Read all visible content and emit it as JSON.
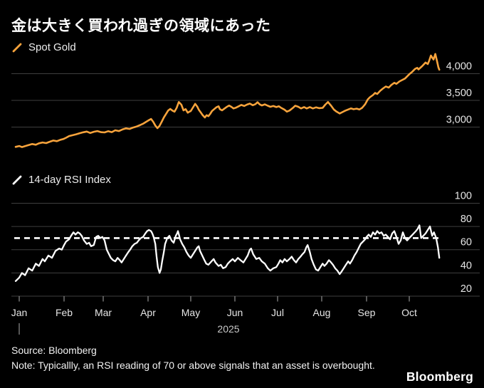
{
  "title": "金は大きく買われ過ぎの領域にあった",
  "colors": {
    "background": "#000000",
    "gold_line": "#F7A33C",
    "rsi_line": "#FFFFFF",
    "grid": "#3E3E3E",
    "axis_text": "#E6E6E6",
    "tick": "#8F8F8F",
    "year_text": "#C9C9C9",
    "title_text": "#FFFFFF",
    "footer_text": "#F2F2F2"
  },
  "x_axis": {
    "months": [
      "Jan",
      "Feb",
      "Mar",
      "Apr",
      "May",
      "Jun",
      "Jul",
      "Aug",
      "Sep",
      "Oct"
    ],
    "year": "2025"
  },
  "footer": {
    "source": "Source: Bloomberg",
    "note": "Note: Typicallly, an RSI reading of 70 or above signals that an asset is overbought.",
    "logo": "Bloomberg"
  },
  "chart_data": [
    {
      "id": "spot-gold",
      "type": "line",
      "title": "Spot Gold",
      "legend_icon": "slash-swatch",
      "series_color": "#F7A33C",
      "x_unit": "months since Jan 2025",
      "y_axis": {
        "side": "right",
        "ticks": [
          4000,
          3500,
          3000
        ],
        "tick_labels": [
          "4,000",
          "3,500",
          "3,000"
        ],
        "approx_range": [
          2550,
          4420
        ]
      },
      "points": [
        [
          -0.08,
          2630
        ],
        [
          0,
          2645
        ],
        [
          0.06,
          2625
        ],
        [
          0.13,
          2642
        ],
        [
          0.21,
          2662
        ],
        [
          0.29,
          2682
        ],
        [
          0.37,
          2670
        ],
        [
          0.44,
          2696
        ],
        [
          0.52,
          2712
        ],
        [
          0.6,
          2700
        ],
        [
          0.68,
          2726
        ],
        [
          0.76,
          2748
        ],
        [
          0.84,
          2736
        ],
        [
          0.92,
          2762
        ],
        [
          0.98,
          2775
        ],
        [
          1.05,
          2800
        ],
        [
          1.13,
          2832
        ],
        [
          1.22,
          2848
        ],
        [
          1.31,
          2866
        ],
        [
          1.4,
          2886
        ],
        [
          1.49,
          2902
        ],
        [
          1.58,
          2916
        ],
        [
          1.67,
          2890
        ],
        [
          1.76,
          2912
        ],
        [
          1.85,
          2926
        ],
        [
          1.95,
          2904
        ],
        [
          2.03,
          2900
        ],
        [
          2.11,
          2922
        ],
        [
          2.19,
          2906
        ],
        [
          2.27,
          2940
        ],
        [
          2.35,
          2926
        ],
        [
          2.43,
          2956
        ],
        [
          2.51,
          2976
        ],
        [
          2.59,
          2966
        ],
        [
          2.67,
          2992
        ],
        [
          2.75,
          3012
        ],
        [
          2.83,
          3040
        ],
        [
          2.9,
          3068
        ],
        [
          2.96,
          3100
        ],
        [
          3.02,
          3130
        ],
        [
          3.07,
          3152
        ],
        [
          3.12,
          3100
        ],
        [
          3.17,
          3030
        ],
        [
          3.22,
          2980
        ],
        [
          3.27,
          3024
        ],
        [
          3.32,
          3100
        ],
        [
          3.37,
          3180
        ],
        [
          3.42,
          3244
        ],
        [
          3.47,
          3310
        ],
        [
          3.52,
          3340
        ],
        [
          3.57,
          3310
        ],
        [
          3.62,
          3288
        ],
        [
          3.67,
          3360
        ],
        [
          3.72,
          3470
        ],
        [
          3.78,
          3420
        ],
        [
          3.83,
          3313
        ],
        [
          3.88,
          3336
        ],
        [
          3.93,
          3270
        ],
        [
          3.97,
          3290
        ],
        [
          4.0,
          3300
        ],
        [
          4.06,
          3380
        ],
        [
          4.1,
          3435
        ],
        [
          4.15,
          3380
        ],
        [
          4.18,
          3327
        ],
        [
          4.23,
          3270
        ],
        [
          4.27,
          3224
        ],
        [
          4.32,
          3180
        ],
        [
          4.36,
          3222
        ],
        [
          4.4,
          3204
        ],
        [
          4.44,
          3247
        ],
        [
          4.48,
          3300
        ],
        [
          4.53,
          3336
        ],
        [
          4.58,
          3371
        ],
        [
          4.63,
          3390
        ],
        [
          4.66,
          3336
        ],
        [
          4.71,
          3313
        ],
        [
          4.76,
          3344
        ],
        [
          4.82,
          3380
        ],
        [
          4.87,
          3402
        ],
        [
          4.92,
          3380
        ],
        [
          4.97,
          3350
        ],
        [
          5.03,
          3365
        ],
        [
          5.08,
          3385
        ],
        [
          5.15,
          3415
        ],
        [
          5.22,
          3395
        ],
        [
          5.28,
          3420
        ],
        [
          5.35,
          3440
        ],
        [
          5.42,
          3410
        ],
        [
          5.48,
          3430
        ],
        [
          5.53,
          3465
        ],
        [
          5.58,
          3425
        ],
        [
          5.63,
          3405
        ],
        [
          5.7,
          3425
        ],
        [
          5.77,
          3400
        ],
        [
          5.83,
          3380
        ],
        [
          5.9,
          3395
        ],
        [
          5.97,
          3375
        ],
        [
          6.03,
          3390
        ],
        [
          6.08,
          3360
        ],
        [
          6.15,
          3330
        ],
        [
          6.21,
          3290
        ],
        [
          6.27,
          3310
        ],
        [
          6.34,
          3355
        ],
        [
          6.4,
          3400
        ],
        [
          6.47,
          3380
        ],
        [
          6.53,
          3350
        ],
        [
          6.6,
          3375
        ],
        [
          6.66,
          3350
        ],
        [
          6.73,
          3375
        ],
        [
          6.8,
          3350
        ],
        [
          6.87,
          3370
        ],
        [
          6.94,
          3355
        ],
        [
          7.02,
          3360
        ],
        [
          7.08,
          3420
        ],
        [
          7.14,
          3470
        ],
        [
          7.21,
          3400
        ],
        [
          7.27,
          3330
        ],
        [
          7.33,
          3290
        ],
        [
          7.4,
          3255
        ],
        [
          7.46,
          3280
        ],
        [
          7.52,
          3305
        ],
        [
          7.59,
          3330
        ],
        [
          7.65,
          3350
        ],
        [
          7.71,
          3335
        ],
        [
          7.78,
          3345
        ],
        [
          7.84,
          3330
        ],
        [
          7.9,
          3360
        ],
        [
          7.97,
          3430
        ],
        [
          8.03,
          3520
        ],
        [
          8.08,
          3560
        ],
        [
          8.15,
          3600
        ],
        [
          8.2,
          3640
        ],
        [
          8.25,
          3620
        ],
        [
          8.32,
          3680
        ],
        [
          8.38,
          3720
        ],
        [
          8.45,
          3760
        ],
        [
          8.52,
          3740
        ],
        [
          8.58,
          3790
        ],
        [
          8.65,
          3830
        ],
        [
          8.7,
          3810
        ],
        [
          8.77,
          3855
        ],
        [
          8.83,
          3880
        ],
        [
          8.9,
          3910
        ],
        [
          8.95,
          3950
        ],
        [
          9.0,
          3990
        ],
        [
          9.06,
          4030
        ],
        [
          9.13,
          4090
        ],
        [
          9.18,
          4110
        ],
        [
          9.21,
          4080
        ],
        [
          9.29,
          4140
        ],
        [
          9.37,
          4210
        ],
        [
          9.42,
          4180
        ],
        [
          9.45,
          4240
        ],
        [
          9.49,
          4340
        ],
        [
          9.55,
          4265
        ],
        [
          9.59,
          4370
        ],
        [
          9.63,
          4230
        ],
        [
          9.66,
          4120
        ],
        [
          9.68,
          4075
        ]
      ]
    },
    {
      "id": "rsi",
      "type": "line",
      "title": "14-day RSI Index",
      "legend_icon": "slash-swatch",
      "series_color": "#FFFFFF",
      "x_unit": "months since Jan 2025",
      "y_axis": {
        "side": "right",
        "ticks": [
          100,
          80,
          60,
          40,
          20
        ],
        "tick_labels": [
          "100",
          "80",
          "60",
          "40",
          "20"
        ],
        "approx_range": [
          20,
          100
        ]
      },
      "reference_line": {
        "value": 70,
        "style": "dashed",
        "color": "#FFFFFF",
        "meaning": "overbought threshold"
      },
      "points": [
        [
          -0.08,
          33
        ],
        [
          0,
          36
        ],
        [
          0.06,
          40
        ],
        [
          0.13,
          38
        ],
        [
          0.21,
          44
        ],
        [
          0.29,
          42
        ],
        [
          0.37,
          48
        ],
        [
          0.44,
          46
        ],
        [
          0.52,
          52
        ],
        [
          0.57,
          50
        ],
        [
          0.65,
          55
        ],
        [
          0.73,
          53
        ],
        [
          0.81,
          59
        ],
        [
          0.89,
          61
        ],
        [
          0.95,
          60
        ],
        [
          1.0,
          64
        ],
        [
          1.05,
          67
        ],
        [
          1.13,
          69
        ],
        [
          1.18,
          72
        ],
        [
          1.24,
          75
        ],
        [
          1.29,
          73
        ],
        [
          1.35,
          75
        ],
        [
          1.4,
          74
        ],
        [
          1.45,
          72
        ],
        [
          1.51,
          68
        ],
        [
          1.58,
          65
        ],
        [
          1.64,
          66
        ],
        [
          1.69,
          63
        ],
        [
          1.76,
          64
        ],
        [
          1.82,
          71
        ],
        [
          1.87,
          72
        ],
        [
          1.93,
          70
        ],
        [
          1.98,
          71
        ],
        [
          2.03,
          68
        ],
        [
          2.08,
          60
        ],
        [
          2.13,
          56
        ],
        [
          2.17,
          53
        ],
        [
          2.22,
          51
        ],
        [
          2.27,
          50
        ],
        [
          2.32,
          53
        ],
        [
          2.37,
          51
        ],
        [
          2.41,
          49
        ],
        [
          2.46,
          52
        ],
        [
          2.51,
          55
        ],
        [
          2.56,
          58
        ],
        [
          2.6,
          60
        ],
        [
          2.65,
          63
        ],
        [
          2.7,
          65
        ],
        [
          2.75,
          66
        ],
        [
          2.79,
          68
        ],
        [
          2.84,
          70
        ],
        [
          2.89,
          71
        ],
        [
          2.94,
          74
        ],
        [
          2.98,
          76
        ],
        [
          3.02,
          77
        ],
        [
          3.07,
          76
        ],
        [
          3.1,
          74
        ],
        [
          3.13,
          71
        ],
        [
          3.17,
          65
        ],
        [
          3.2,
          54
        ],
        [
          3.23,
          45
        ],
        [
          3.27,
          40
        ],
        [
          3.3,
          43
        ],
        [
          3.33,
          50
        ],
        [
          3.37,
          58
        ],
        [
          3.4,
          65
        ],
        [
          3.45,
          70
        ],
        [
          3.5,
          72
        ],
        [
          3.55,
          68
        ],
        [
          3.6,
          66
        ],
        [
          3.65,
          72
        ],
        [
          3.68,
          74
        ],
        [
          3.7,
          76
        ],
        [
          3.73,
          72
        ],
        [
          3.75,
          69
        ],
        [
          3.8,
          65
        ],
        [
          3.85,
          62
        ],
        [
          3.9,
          58
        ],
        [
          3.95,
          55
        ],
        [
          4.0,
          53
        ],
        [
          4.05,
          56
        ],
        [
          4.1,
          59
        ],
        [
          4.15,
          62
        ],
        [
          4.18,
          63
        ],
        [
          4.21,
          59
        ],
        [
          4.26,
          55
        ],
        [
          4.31,
          51
        ],
        [
          4.35,
          48
        ],
        [
          4.4,
          47
        ],
        [
          4.47,
          50
        ],
        [
          4.52,
          52
        ],
        [
          4.56,
          49
        ],
        [
          4.63,
          46
        ],
        [
          4.68,
          47
        ],
        [
          4.73,
          44
        ],
        [
          4.79,
          45
        ],
        [
          4.84,
          48
        ],
        [
          4.89,
          50
        ],
        [
          4.95,
          52
        ],
        [
          5.0,
          50
        ],
        [
          5.07,
          53
        ],
        [
          5.13,
          51
        ],
        [
          5.2,
          49
        ],
        [
          5.25,
          52
        ],
        [
          5.3,
          55
        ],
        [
          5.35,
          60
        ],
        [
          5.38,
          61
        ],
        [
          5.43,
          56
        ],
        [
          5.5,
          52
        ],
        [
          5.57,
          53
        ],
        [
          5.63,
          50
        ],
        [
          5.7,
          48
        ],
        [
          5.77,
          44
        ],
        [
          5.83,
          42
        ],
        [
          5.9,
          44
        ],
        [
          5.97,
          45
        ],
        [
          6.02,
          48
        ],
        [
          6.06,
          51
        ],
        [
          6.11,
          49
        ],
        [
          6.16,
          52
        ],
        [
          6.21,
          50
        ],
        [
          6.27,
          52
        ],
        [
          6.32,
          54
        ],
        [
          6.37,
          51
        ],
        [
          6.42,
          49
        ],
        [
          6.47,
          52
        ],
        [
          6.52,
          54
        ],
        [
          6.56,
          56
        ],
        [
          6.61,
          58
        ],
        [
          6.65,
          62
        ],
        [
          6.68,
          64
        ],
        [
          6.73,
          58
        ],
        [
          6.77,
          52
        ],
        [
          6.82,
          47
        ],
        [
          6.87,
          43
        ],
        [
          6.92,
          42
        ],
        [
          6.97,
          45
        ],
        [
          7.02,
          48
        ],
        [
          7.06,
          46
        ],
        [
          7.11,
          48
        ],
        [
          7.16,
          51
        ],
        [
          7.21,
          49
        ],
        [
          7.25,
          47
        ],
        [
          7.3,
          44
        ],
        [
          7.35,
          42
        ],
        [
          7.4,
          39
        ],
        [
          7.44,
          41
        ],
        [
          7.49,
          44
        ],
        [
          7.54,
          47
        ],
        [
          7.59,
          50
        ],
        [
          7.63,
          48
        ],
        [
          7.68,
          51
        ],
        [
          7.73,
          55
        ],
        [
          7.78,
          58
        ],
        [
          7.83,
          62
        ],
        [
          7.87,
          65
        ],
        [
          7.92,
          67
        ],
        [
          7.97,
          69
        ],
        [
          8.0,
          71
        ],
        [
          8.05,
          73
        ],
        [
          8.1,
          71
        ],
        [
          8.15,
          75
        ],
        [
          8.2,
          73
        ],
        [
          8.25,
          76
        ],
        [
          8.3,
          74
        ],
        [
          8.35,
          75
        ],
        [
          8.4,
          72
        ],
        [
          8.45,
          73
        ],
        [
          8.5,
          71
        ],
        [
          8.55,
          69
        ],
        [
          8.6,
          74
        ],
        [
          8.65,
          76
        ],
        [
          8.7,
          71
        ],
        [
          8.75,
          65
        ],
        [
          8.8,
          68
        ],
        [
          8.85,
          75
        ],
        [
          8.9,
          70
        ],
        [
          8.95,
          68
        ],
        [
          9.0,
          70
        ],
        [
          9.05,
          72
        ],
        [
          9.1,
          74
        ],
        [
          9.15,
          76
        ],
        [
          9.19,
          78
        ],
        [
          9.23,
          81
        ],
        [
          9.27,
          70
        ],
        [
          9.32,
          72
        ],
        [
          9.37,
          74
        ],
        [
          9.42,
          77
        ],
        [
          9.47,
          80
        ],
        [
          9.52,
          72
        ],
        [
          9.56,
          75
        ],
        [
          9.61,
          70
        ],
        [
          9.65,
          62
        ],
        [
          9.68,
          53
        ]
      ]
    }
  ]
}
